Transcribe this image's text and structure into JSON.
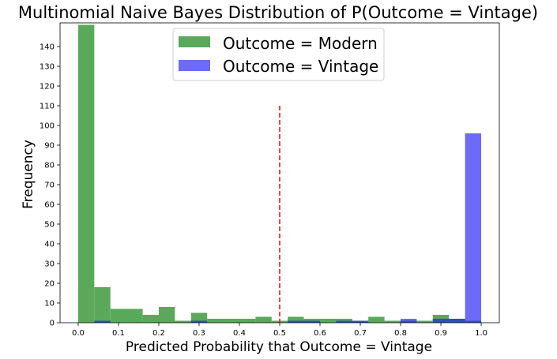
{
  "chart_data": {
    "type": "bar",
    "title": "Multinomial Naive Bayes Distribution of P(Outcome = Vintage)",
    "xlabel": "Predicted Probability that Outcome = Vintage",
    "ylabel": "Frequency",
    "xlim": [
      -0.045,
      1.045
    ],
    "ylim": [
      0,
      152
    ],
    "xticks": [
      0.0,
      0.1,
      0.2,
      0.3,
      0.4,
      0.5,
      0.6,
      0.7,
      0.8,
      0.9,
      1.0
    ],
    "xtick_labels": [
      "0.0",
      "0.1",
      "0.2",
      "0.3",
      "0.4",
      "0.5",
      "0.6",
      "0.7",
      "0.8",
      "0.9",
      "1.0"
    ],
    "yticks": [
      0,
      10,
      20,
      30,
      40,
      50,
      60,
      70,
      80,
      90,
      100,
      110,
      120,
      130,
      140
    ],
    "ytick_labels": [
      "0",
      "10",
      "20",
      "30",
      "40",
      "50",
      "60",
      "70",
      "80",
      "90",
      "100",
      "110",
      "120",
      "130",
      "140"
    ],
    "legend_position": "top-center",
    "grid": false,
    "threshold_line": {
      "x": 0.5,
      "y_top": 110,
      "color": "#e41a1c",
      "style": "dashed"
    },
    "series": [
      {
        "name": "Outcome = Modern",
        "color": "#5aa95a",
        "bins": [
          [
            0.0,
            0.04,
            151
          ],
          [
            0.04,
            0.08,
            18
          ],
          [
            0.08,
            0.16,
            7
          ],
          [
            0.16,
            0.2,
            4
          ],
          [
            0.2,
            0.24,
            8
          ],
          [
            0.24,
            0.28,
            1
          ],
          [
            0.28,
            0.32,
            5
          ],
          [
            0.32,
            0.44,
            2
          ],
          [
            0.44,
            0.48,
            3
          ],
          [
            0.48,
            0.52,
            1
          ],
          [
            0.52,
            0.56,
            3
          ],
          [
            0.56,
            0.68,
            2
          ],
          [
            0.68,
            0.72,
            1
          ],
          [
            0.72,
            0.76,
            3
          ],
          [
            0.76,
            0.84,
            1
          ],
          [
            0.84,
            0.88,
            1
          ],
          [
            0.88,
            0.92,
            4
          ],
          [
            0.92,
            0.96,
            2
          ],
          [
            0.96,
            1.0,
            1
          ]
        ]
      },
      {
        "name": "Outcome = Vintage",
        "color": "#6b6bf7",
        "bins": [
          [
            0.04,
            0.08,
            1
          ],
          [
            0.28,
            0.32,
            1
          ],
          [
            0.52,
            0.6,
            1
          ],
          [
            0.64,
            0.72,
            1
          ],
          [
            0.8,
            0.84,
            2
          ],
          [
            0.88,
            0.96,
            2
          ],
          [
            0.96,
            1.0,
            96
          ]
        ]
      }
    ],
    "overlap_color": "#2b4fbf"
  }
}
